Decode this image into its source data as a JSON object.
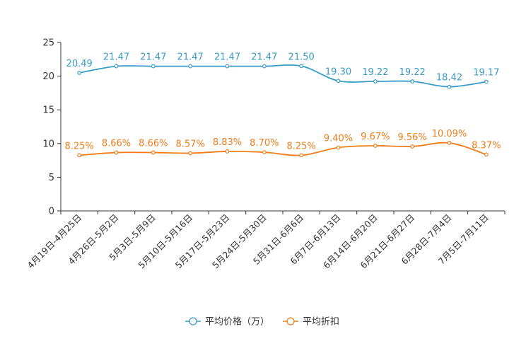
{
  "chart_data": {
    "type": "line",
    "title": "",
    "xlabel": "",
    "ylabel": "",
    "ylim": [
      0,
      25
    ],
    "yticks": [
      0,
      5,
      10,
      15,
      20,
      25
    ],
    "categories": [
      "4月19日-4月25日",
      "4月26日-5月2日",
      "5月3日-5月9日",
      "5月10日-5月16日",
      "5月17日-5月23日",
      "5月24日-5月30日",
      "5月31日-6月6日",
      "6月7日-6月13日",
      "6月14日-6月20日",
      "6月21日-6月27日",
      "6月28日-7月4日",
      "7月5日-7月11日"
    ],
    "series": [
      {
        "name": "平均价格（万）",
        "color": "#3a9bc8",
        "values": [
          20.49,
          21.47,
          21.47,
          21.47,
          21.47,
          21.47,
          21.5,
          19.3,
          19.22,
          19.22,
          18.42,
          19.17
        ],
        "labels": [
          "20.49",
          "21.47",
          "21.47",
          "21.47",
          "21.47",
          "21.47",
          "21.50",
          "19.30",
          "19.22",
          "19.22",
          "18.42",
          "19.17"
        ]
      },
      {
        "name": "平均折扣",
        "color": "#f07d1a",
        "values": [
          8.25,
          8.66,
          8.66,
          8.57,
          8.83,
          8.7,
          8.25,
          9.4,
          9.67,
          9.56,
          10.09,
          8.37
        ],
        "labels": [
          "8.25%",
          "8.66%",
          "8.66%",
          "8.57%",
          "8.83%",
          "8.70%",
          "8.25%",
          "9.40%",
          "9.67%",
          "9.56%",
          "10.09%",
          "8.37%"
        ]
      }
    ],
    "legend_position": "bottom-center"
  }
}
